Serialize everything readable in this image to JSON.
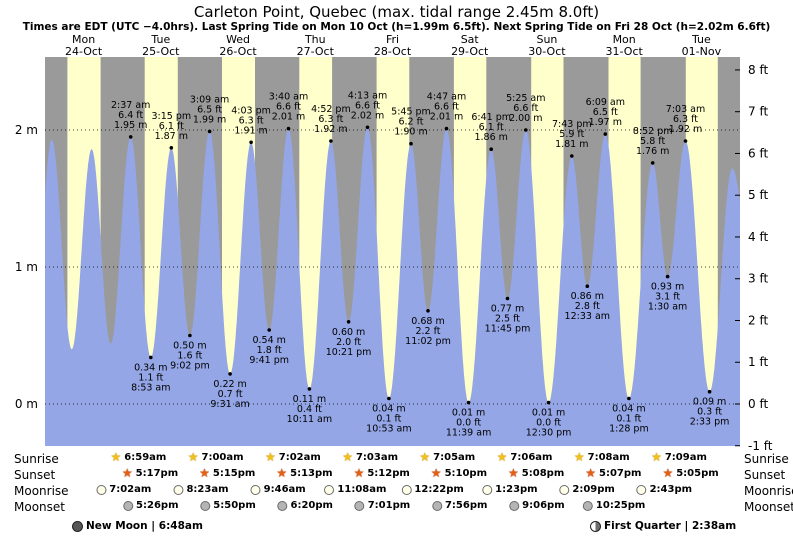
{
  "title": "Carleton Point, Quebec (max. tidal range 2.45m 8.0ft)",
  "subtitle": "Times are EDT (UTC −4.0hrs). Last Spring Tide on Mon 10 Oct (h=1.99m 6.5ft). Next Spring Tide on Fri 28 Oct (h=2.02m 6.6ft)",
  "colors": {
    "night_bg": "#9a9a9a",
    "day_band": "#ffffcc",
    "tide_fill": "#94a6e6",
    "day_label_red": "#cc0000",
    "annotation": "#000000"
  },
  "chart_data": {
    "type": "area",
    "title": "Tide height curve, Carleton Point, Quebec",
    "x_unit": "hours from Mon 24-Oct 00:00 EDT",
    "x_range": [
      0,
      216
    ],
    "grid": "dotted horizontal lines at 0 m, 1 m, 2 m",
    "y_left_ticks": [
      {
        "label": "2 m",
        "m": 2
      },
      {
        "label": "1 m",
        "m": 1
      },
      {
        "label": "0 m",
        "m": 0
      }
    ],
    "y_right_ticks": [
      {
        "label": "8 ft",
        "ft": 8
      },
      {
        "label": "7 ft",
        "ft": 7
      },
      {
        "label": "6 ft",
        "ft": 6
      },
      {
        "label": "5 ft",
        "ft": 5
      },
      {
        "label": "4 ft",
        "ft": 4
      },
      {
        "label": "3 ft",
        "ft": 3
      },
      {
        "label": "2 ft",
        "ft": 2
      },
      {
        "label": "1 ft",
        "ft": 1
      },
      {
        "label": "0 ft",
        "ft": 0
      },
      {
        "label": "-1 ft",
        "ft": -1
      }
    ],
    "days": [
      {
        "name": "Mon",
        "date": "24-Oct"
      },
      {
        "name": "Tue",
        "date": "25-Oct"
      },
      {
        "name": "Wed",
        "date": "26-Oct"
      },
      {
        "name": "Thu",
        "date": "27-Oct"
      },
      {
        "name": "Fri",
        "date": "28-Oct"
      },
      {
        "name": "Sat",
        "date": "29-Oct"
      },
      {
        "name": "Sun",
        "date": "30-Oct"
      },
      {
        "name": "Mon",
        "date": "31-Oct"
      },
      {
        "name": "Tue",
        "date": "01-Nov"
      }
    ],
    "events": [
      {
        "t": 26.62,
        "h": 1.95,
        "type": "H",
        "label": [
          "2:37 am",
          "6.4 ft",
          "1.95 m"
        ]
      },
      {
        "t": 32.88,
        "h": 0.34,
        "type": "L",
        "label": [
          "0.34 m",
          "1.1 ft",
          "8:53 am"
        ]
      },
      {
        "t": 39.25,
        "h": 1.87,
        "type": "H",
        "label": [
          "3:15 pm",
          "6.1 ft",
          "1.87 m"
        ]
      },
      {
        "t": 45.03,
        "h": 0.5,
        "type": "L",
        "label": [
          "0.50 m",
          "1.6 ft",
          "9:02 pm"
        ]
      },
      {
        "t": 51.15,
        "h": 1.99,
        "type": "H",
        "label": [
          "3:09 am",
          "6.5 ft",
          "1.99 m"
        ]
      },
      {
        "t": 57.52,
        "h": 0.22,
        "type": "L",
        "label": [
          "0.22 m",
          "0.7 ft",
          "9:31 am"
        ]
      },
      {
        "t": 64.05,
        "h": 1.91,
        "type": "H",
        "label": [
          "4:03 pm",
          "6.3 ft",
          "1.91 m"
        ]
      },
      {
        "t": 69.68,
        "h": 0.54,
        "type": "L",
        "label": [
          "0.54 m",
          "1.8 ft",
          "9:41 pm"
        ]
      },
      {
        "t": 75.67,
        "h": 2.01,
        "type": "H",
        "label": [
          "3:40 am",
          "6.6 ft",
          "2.01 m"
        ]
      },
      {
        "t": 82.18,
        "h": 0.11,
        "type": "L",
        "label": [
          "0.11 m",
          "0.4 ft",
          "10:11 am"
        ]
      },
      {
        "t": 88.87,
        "h": 1.92,
        "type": "H",
        "label": [
          "4:52 pm",
          "6.3 ft",
          "1.92 m"
        ]
      },
      {
        "t": 94.35,
        "h": 0.6,
        "type": "L",
        "label": [
          "0.60 m",
          "2.0 ft",
          "10:21 pm"
        ]
      },
      {
        "t": 100.22,
        "h": 2.02,
        "type": "H",
        "label": [
          "4:13 am",
          "6.6 ft",
          "2.02 m"
        ]
      },
      {
        "t": 106.88,
        "h": 0.04,
        "type": "L",
        "label": [
          "0.04 m",
          "0.1 ft",
          "10:53 am"
        ]
      },
      {
        "t": 113.75,
        "h": 1.9,
        "type": "H",
        "label": [
          "5:45 pm",
          "6.2 ft",
          "1.90 m"
        ]
      },
      {
        "t": 119.03,
        "h": 0.68,
        "type": "L",
        "label": [
          "0.68 m",
          "2.2 ft",
          "11:02 pm"
        ]
      },
      {
        "t": 124.78,
        "h": 2.01,
        "type": "H",
        "label": [
          "4:47 am",
          "6.6 ft",
          "2.01 m"
        ]
      },
      {
        "t": 131.65,
        "h": 0.01,
        "type": "L",
        "label": [
          "0.01 m",
          "0.0 ft",
          "11:39 am"
        ]
      },
      {
        "t": 138.68,
        "h": 1.86,
        "type": "H",
        "label": [
          "6:41 pm",
          "6.1 ft",
          "1.86 m"
        ]
      },
      {
        "t": 143.75,
        "h": 0.77,
        "type": "L",
        "label": [
          "0.77 m",
          "2.5 ft",
          "11:45 pm"
        ]
      },
      {
        "t": 149.42,
        "h": 2.0,
        "type": "H",
        "label": [
          "5:25 am",
          "6.6 ft",
          "2.00 m"
        ]
      },
      {
        "t": 156.5,
        "h": 0.01,
        "type": "L",
        "label": [
          "0.01 m",
          "0.0 ft",
          "12:30 pm"
        ]
      },
      {
        "t": 163.72,
        "h": 1.81,
        "type": "H",
        "label": [
          "7:43 pm",
          "5.9 ft",
          "1.81 m"
        ]
      },
      {
        "t": 168.55,
        "h": 0.86,
        "type": "L",
        "label": [
          "0.86 m",
          "2.8 ft",
          "12:33 am"
        ]
      },
      {
        "t": 174.15,
        "h": 1.97,
        "type": "H",
        "label": [
          "6:09 am",
          "6.5 ft",
          "1.97 m"
        ]
      },
      {
        "t": 181.47,
        "h": 0.04,
        "type": "L",
        "label": [
          "0.04 m",
          "0.1 ft",
          "1:28 pm"
        ]
      },
      {
        "t": 188.87,
        "h": 1.76,
        "type": "H",
        "label": [
          "8:52 pm",
          "5.8 ft",
          "1.76 m"
        ]
      },
      {
        "t": 193.5,
        "h": 0.93,
        "type": "L",
        "label": [
          "0.93 m",
          "3.1 ft",
          "1:30 am"
        ]
      },
      {
        "t": 199.05,
        "h": 1.92,
        "type": "H",
        "label": [
          "7:03 am",
          "6.3 ft",
          "1.92 m"
        ]
      },
      {
        "t": 206.55,
        "h": 0.09,
        "type": "L",
        "label": [
          "0.09 m",
          "0.3 ft",
          "2:33 pm"
        ]
      }
    ],
    "curve_anchors": [
      {
        "t": -3.8,
        "h": 0.45
      },
      {
        "t": 2.1,
        "h": 1.93
      },
      {
        "t": 8.3,
        "h": 0.4
      },
      {
        "t": 14.5,
        "h": 1.86
      },
      {
        "t": 20.4,
        "h": 0.44
      },
      {
        "t": 213.6,
        "h": 1.72
      },
      {
        "t": 219.8,
        "h": 0.95
      }
    ]
  },
  "astro_rows": [
    {
      "label": "Sunrise",
      "icon": "sunrise-star-icon",
      "glyph": "★",
      "start_day": 1,
      "times": [
        "6:59am",
        "7:00am",
        "7:02am",
        "7:03am",
        "7:05am",
        "7:06am",
        "7:08am",
        "7:09am"
      ]
    },
    {
      "label": "Sunset",
      "icon": "sunset-star-icon",
      "glyph": "★",
      "start_day": 1,
      "times": [
        "5:17pm",
        "5:15pm",
        "5:13pm",
        "5:12pm",
        "5:10pm",
        "5:08pm",
        "5:07pm",
        "5:05pm"
      ]
    },
    {
      "label": "Moonrise",
      "icon": "moonrise-moon-icon",
      "glyph": "",
      "start_day": 1,
      "times": [
        "7:02am",
        "8:23am",
        "9:46am",
        "11:08am",
        "12:22pm",
        "1:23pm",
        "2:09pm",
        "2:43pm"
      ]
    },
    {
      "label": "Moonset",
      "icon": "moonset-moon-icon",
      "glyph": "",
      "start_day": 1,
      "times": [
        "5:26pm",
        "5:50pm",
        "6:20pm",
        "7:01pm",
        "7:56pm",
        "9:06pm",
        "10:25pm"
      ]
    }
  ],
  "moon_phases": [
    {
      "icon": "new-moon-icon",
      "label": "New Moon | 6:48am"
    },
    {
      "icon": "first-quarter-icon",
      "label": "First Quarter | 2:38am"
    }
  ]
}
